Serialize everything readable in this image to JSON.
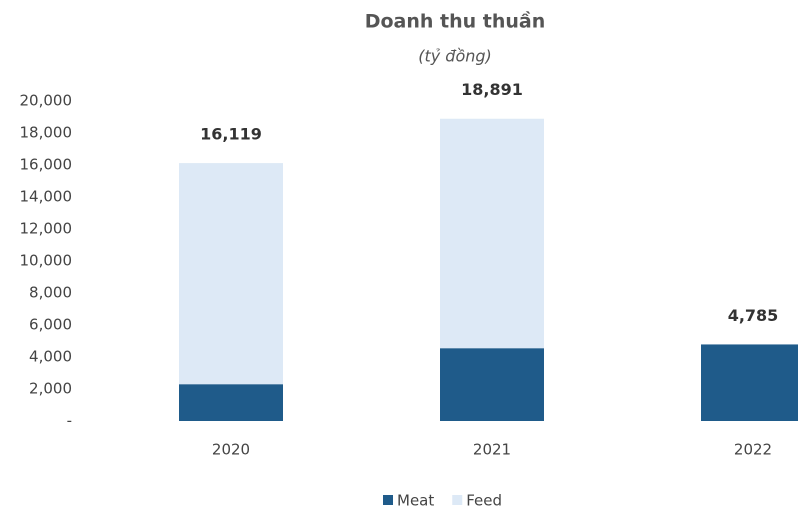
{
  "chart_data": {
    "type": "stacked_bar",
    "title": "Doanh thu thuần",
    "subtitle": "(tỷ đồng)",
    "categories": [
      "2020",
      "2021",
      "2022"
    ],
    "series": [
      {
        "name": "Meat",
        "color": "#1f5b8a",
        "values": [
          2300,
          4550,
          4785
        ]
      },
      {
        "name": "Feed",
        "color": "#dde9f6",
        "values": [
          13819,
          14341,
          null
        ]
      }
    ],
    "totals": [
      16119,
      18891,
      4785
    ],
    "total_labels": [
      "16,119",
      "18,891",
      "4,785"
    ],
    "ylim": [
      0,
      20000
    ],
    "yticks": [
      {
        "value": 0,
        "label": "-"
      },
      {
        "value": 2000,
        "label": "2,000"
      },
      {
        "value": 4000,
        "label": "4,000"
      },
      {
        "value": 6000,
        "label": "6,000"
      },
      {
        "value": 8000,
        "label": "8,000"
      },
      {
        "value": 10000,
        "label": "10,000"
      },
      {
        "value": 12000,
        "label": "12,000"
      },
      {
        "value": 14000,
        "label": "14,000"
      },
      {
        "value": 16000,
        "label": "16,000"
      },
      {
        "value": 18000,
        "label": "18,000"
      },
      {
        "value": 20000,
        "label": "20,000"
      }
    ],
    "legend": "bottom"
  }
}
